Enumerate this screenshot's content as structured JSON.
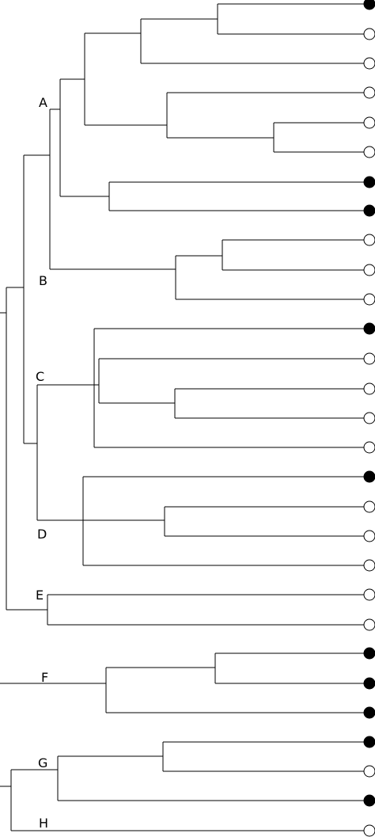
{
  "clade_labels": [
    "A",
    "B",
    "C",
    "D",
    "E",
    "F",
    "G",
    "H"
  ],
  "tips": [
    {
      "state": "filled"
    },
    {
      "state": "open"
    },
    {
      "state": "open"
    },
    {
      "state": "open"
    },
    {
      "state": "open"
    },
    {
      "state": "open"
    },
    {
      "state": "filled"
    },
    {
      "state": "filled"
    },
    {
      "state": "open"
    },
    {
      "state": "open"
    },
    {
      "state": "open"
    },
    {
      "state": "filled"
    },
    {
      "state": "open"
    },
    {
      "state": "open"
    },
    {
      "state": "open"
    },
    {
      "state": "open"
    },
    {
      "state": "filled"
    },
    {
      "state": "open"
    },
    {
      "state": "open"
    },
    {
      "state": "open"
    },
    {
      "state": "open"
    },
    {
      "state": "open"
    },
    {
      "state": "filled"
    },
    {
      "state": "filled"
    },
    {
      "state": "filled"
    },
    {
      "state": "filled"
    },
    {
      "state": "open"
    },
    {
      "state": "filled"
    },
    {
      "state": "open"
    }
  ],
  "colors": {
    "line": "#000000",
    "filled_marker": "#000000",
    "open_marker": "#ffffff"
  }
}
